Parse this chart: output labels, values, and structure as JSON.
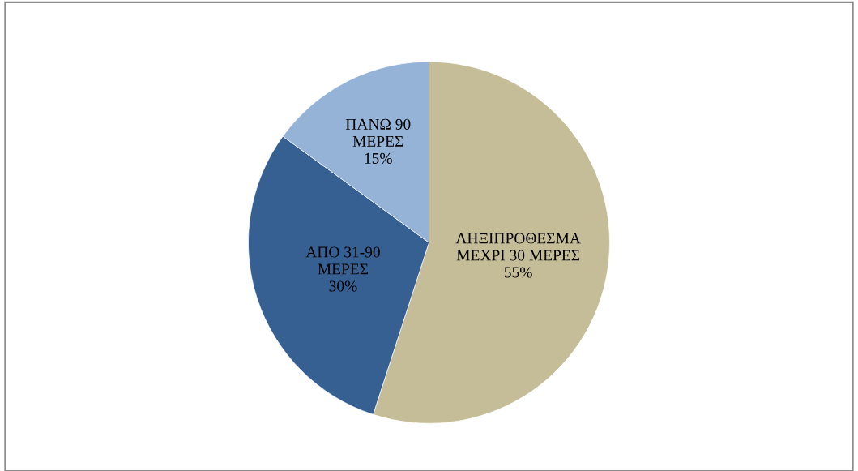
{
  "chart_data": {
    "type": "pie",
    "categories": [
      "ΛΗΞΙΠΡΟΘΕΣΜΑ\nΜΕΧΡΙ 30 ΜΕΡΕΣ",
      "ΑΠΟ 31-90\nΜΕΡΕΣ",
      "ΠΑΝΩ 90\nΜΕΡΕΣ"
    ],
    "values": [
      55,
      30,
      15
    ],
    "colors": [
      "#c4bd97",
      "#376092",
      "#95b3d7"
    ],
    "value_labels": [
      "55%",
      "30%",
      "15%"
    ],
    "legend": false
  }
}
